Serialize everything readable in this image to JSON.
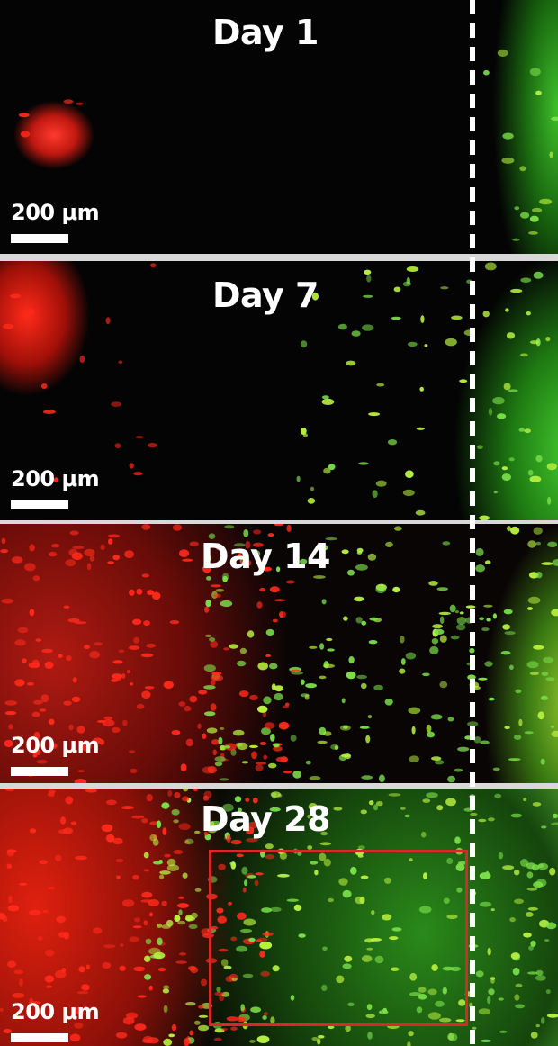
{
  "panels": [
    {
      "title": "Day 1",
      "scale_label": "200 μm"
    },
    {
      "title": "Day 7",
      "scale_label": "200 μm"
    },
    {
      "title": "Day 14",
      "scale_label": "200 μm"
    },
    {
      "title": "Day 28",
      "scale_label": "200 μm"
    }
  ]
}
